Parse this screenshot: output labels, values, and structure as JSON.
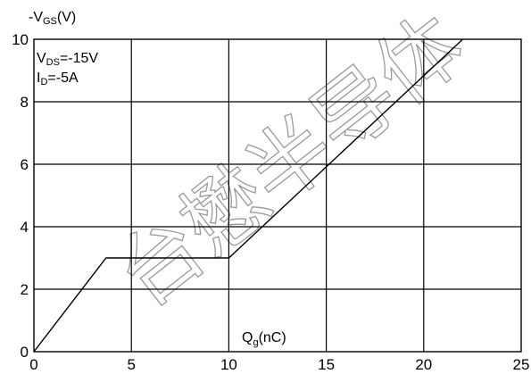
{
  "chart_data": {
    "type": "line",
    "title": "",
    "ylabel": "-V GS(V)",
    "ylabel_parts": {
      "main": "-V",
      "sub": "GS",
      "unit": "(V)"
    },
    "xlabel_parts": {
      "main": "Q",
      "sub": "g",
      "unit": "(nC)"
    },
    "xlim": [
      0,
      25
    ],
    "ylim": [
      0,
      10
    ],
    "x_ticks": [
      0,
      5,
      10,
      15,
      20,
      25
    ],
    "y_ticks": [
      0,
      2,
      4,
      6,
      8,
      10
    ],
    "grid": true,
    "conditions": [
      {
        "main": "V",
        "sub": "DS",
        "rest": "=-15V"
      },
      {
        "main": "I",
        "sub": "D",
        "rest": "=-5A"
      }
    ],
    "series": [
      {
        "x": [
          0,
          3.7,
          10,
          22
        ],
        "y": [
          0,
          3,
          3,
          10
        ]
      }
    ]
  },
  "watermark": "台懋半导体",
  "colors": {
    "line": "#000000",
    "grid": "#000000",
    "watermark": "#9a9a9a"
  }
}
